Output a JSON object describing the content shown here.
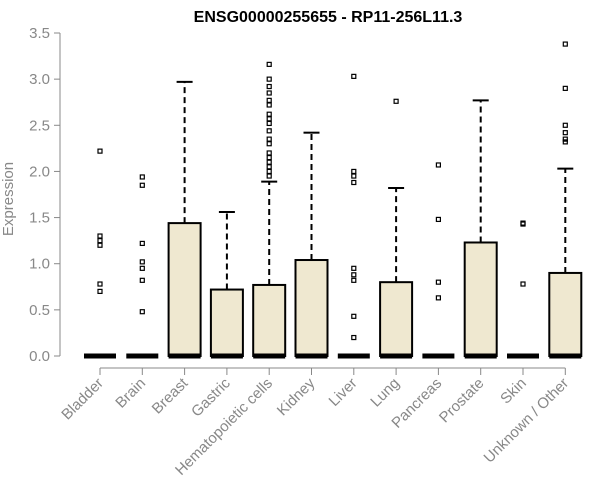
{
  "chart_data": {
    "type": "box",
    "title": "ENSG00000255655 - RP11-256L11.3",
    "xlabel": "",
    "ylabel": "Expression",
    "ylim": [
      0,
      3.5
    ],
    "yticks": [
      "0.0",
      "0.5",
      "1.0",
      "1.5",
      "2.0",
      "2.5",
      "3.0",
      "3.5"
    ],
    "box_fill": "#efe8d0",
    "categories": [
      "Bladder",
      "Brain",
      "Breast",
      "Gastric",
      "Hematopoietic cells",
      "Kidney",
      "Liver",
      "Lung",
      "Pancreas",
      "Prostate",
      "Skin",
      "Unknown / Other"
    ],
    "boxes": [
      {
        "q1": 0,
        "median": 0,
        "q3": 0,
        "whisker_high": null,
        "outliers": [
          2.22,
          1.3,
          1.25,
          1.2,
          0.78,
          0.7
        ]
      },
      {
        "q1": 0,
        "median": 0,
        "q3": 0,
        "whisker_high": null,
        "outliers": [
          1.94,
          1.85,
          1.22,
          1.02,
          0.95,
          0.82,
          0.48
        ]
      },
      {
        "q1": 0,
        "median": 0,
        "q3": 1.44,
        "whisker_high": 2.97,
        "outliers": []
      },
      {
        "q1": 0,
        "median": 0,
        "q3": 0.72,
        "whisker_high": 1.56,
        "outliers": []
      },
      {
        "q1": 0,
        "median": 0,
        "q3": 0.77,
        "whisker_high": 1.89,
        "outliers": [
          3.16,
          3.0,
          2.92,
          2.85,
          2.77,
          2.72,
          2.62,
          2.57,
          2.52,
          2.44,
          2.35,
          2.3,
          2.2,
          2.15,
          2.1,
          2.05,
          2.0,
          1.95
        ]
      },
      {
        "q1": 0,
        "median": 0,
        "q3": 1.04,
        "whisker_high": 2.42,
        "outliers": []
      },
      {
        "q1": 0,
        "median": 0,
        "q3": 0,
        "whisker_high": null,
        "outliers": [
          3.03,
          2.0,
          1.95,
          1.88,
          0.95,
          0.88,
          0.82,
          0.43,
          0.2
        ]
      },
      {
        "q1": 0,
        "median": 0,
        "q3": 0.8,
        "whisker_high": 1.82,
        "outliers": [
          2.76
        ]
      },
      {
        "q1": 0,
        "median": 0,
        "q3": 0,
        "whisker_high": null,
        "outliers": [
          2.07,
          1.48,
          0.8,
          0.63
        ]
      },
      {
        "q1": 0,
        "median": 0,
        "q3": 1.23,
        "whisker_high": 2.77,
        "outliers": []
      },
      {
        "q1": 0,
        "median": 0,
        "q3": 0,
        "whisker_high": null,
        "outliers": [
          1.44,
          1.43,
          0.78
        ]
      },
      {
        "q1": 0,
        "median": 0,
        "q3": 0.9,
        "whisker_high": 2.03,
        "outliers": [
          3.38,
          2.9,
          2.5,
          2.42,
          2.35,
          2.32
        ]
      }
    ]
  }
}
